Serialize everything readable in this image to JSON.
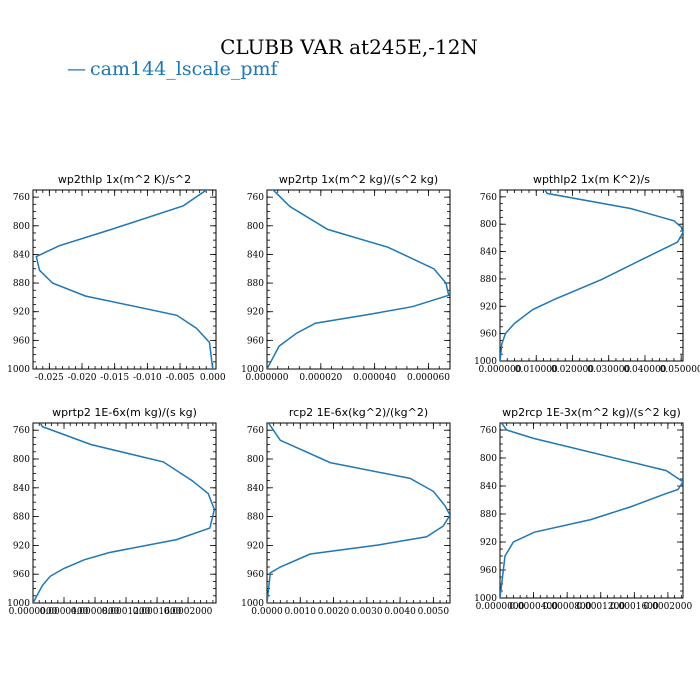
{
  "title": "CLUBB VAR at245E,-12N",
  "legend": {
    "line": "—",
    "label": "cam144_lscale_pmf",
    "color": "#1f77b4"
  },
  "chart_data": [
    {
      "type": "line",
      "title": "wp2thlp  1x(m^2 K)/s^2",
      "xlim": [
        -0.0275,
        0.0005
      ],
      "ylim": [
        1000,
        750
      ],
      "xticks": [
        -0.025,
        -0.02,
        -0.015,
        -0.01,
        -0.005,
        0.0
      ],
      "xtick_labels": [
        "-0.025",
        "-0.020",
        "-0.015",
        "-0.010",
        "-0.005",
        "0.000"
      ],
      "yticks": [
        760,
        800,
        840,
        880,
        920,
        960,
        1000
      ],
      "series": [
        {
          "x": [
            -0.0005,
            -0.0045,
            -0.0155,
            -0.0235,
            -0.027,
            -0.0265,
            -0.0245,
            -0.0195,
            -0.0055,
            -0.0025,
            -0.0005,
            0.0
          ],
          "y": [
            747,
            772,
            805,
            828,
            843,
            862,
            880,
            898,
            925,
            943,
            963,
            1000
          ]
        }
      ]
    },
    {
      "type": "line",
      "title": "wp2rtp  1x(m^2 kg)/(s^2 kg)",
      "xlim": [
        0.0,
        6.8e-05
      ],
      "ylim": [
        1000,
        750
      ],
      "xticks": [
        0.0,
        2e-05,
        4e-05,
        6e-05
      ],
      "xtick_labels": [
        "0.000000",
        "0.000020",
        "0.000040",
        "0.000060"
      ],
      "yticks": [
        760,
        800,
        840,
        880,
        920,
        960,
        1000
      ],
      "series": [
        {
          "x": [
            1.5e-06,
            8.5e-06,
            2.25e-05,
            4.5e-05,
            6.2e-05,
            6.65e-05,
            6.75e-05,
            5.4e-05,
            3.6e-05,
            1.8e-05,
            1.1e-05,
            4.5e-06,
            0.0
          ],
          "y": [
            747,
            773,
            805,
            830,
            860,
            880,
            897,
            913,
            925,
            936,
            950,
            968,
            1000
          ]
        }
      ]
    },
    {
      "type": "line",
      "title": "wpthlp2  1x(m K^2)/s",
      "xlim": [
        0.0,
        0.0505
      ],
      "ylim": [
        1000,
        750
      ],
      "xticks": [
        0.0,
        0.01,
        0.02,
        0.03,
        0.04,
        0.05
      ],
      "xtick_labels": [
        "0.000000",
        "0.010000",
        "0.020000",
        "0.030000",
        "0.040000",
        "0.050000"
      ],
      "yticks": [
        760,
        800,
        840,
        880,
        920,
        960,
        1000
      ],
      "series": [
        {
          "x": [
            0.012,
            0.013,
            0.036,
            0.048,
            0.05,
            0.0505,
            0.049,
            0.039,
            0.028,
            0.015,
            0.009,
            0.004,
            0.0015,
            0.0005,
            0.0
          ],
          "y": [
            747,
            755,
            777,
            795,
            804,
            812,
            826,
            852,
            881,
            910,
            925,
            945,
            960,
            975,
            1000
          ]
        }
      ]
    },
    {
      "type": "line",
      "title": "wprtp2  1E-6x(m kg)/(s kg)",
      "xlim": [
        0.0,
        0.000236
      ],
      "ylim": [
        1000,
        750
      ],
      "xticks": [
        0.0,
        4e-05,
        8e-05,
        0.00012,
        0.00016,
        0.0002
      ],
      "xtick_labels": [
        "0.0000000",
        "0.0000400",
        "0.0000800",
        "0.0001200",
        "0.0001600",
        "0.0002000"
      ],
      "yticks": [
        760,
        800,
        840,
        880,
        920,
        960,
        1000
      ],
      "series": [
        {
          "x": [
            8e-06,
            1.2e-05,
            7.5e-05,
            0.000168,
            0.000205,
            0.000226,
            0.000234,
            0.000228,
            0.000185,
            9.8e-05,
            6.6e-05,
            4e-05,
            2.2e-05,
            1.2e-05,
            0.0
          ],
          "y": [
            747,
            755,
            780,
            804,
            830,
            848,
            870,
            896,
            912,
            930,
            940,
            952,
            963,
            976,
            1000
          ]
        }
      ]
    },
    {
      "type": "line",
      "title": "rcp2  1E-6x(kg^2)/(kg^2)",
      "xlim": [
        0.0,
        0.0055
      ],
      "ylim": [
        1000,
        750
      ],
      "xticks": [
        0.0,
        0.001,
        0.002,
        0.003,
        0.004,
        0.005
      ],
      "xtick_labels": [
        "0.0000",
        "0.0010",
        "0.0020",
        "0.0030",
        "0.0040",
        "0.0050"
      ],
      "yticks": [
        760,
        800,
        840,
        880,
        920,
        960,
        1000
      ],
      "series": [
        {
          "x": [
            0.0,
            0.0004,
            0.0019,
            0.0043,
            0.005,
            0.00535,
            0.0055,
            0.0053,
            0.0048,
            0.0034,
            0.0013,
            0.0004,
            0.0001,
            0.0
          ],
          "y": [
            747,
            774,
            805,
            827,
            845,
            865,
            878,
            893,
            908,
            919,
            932,
            950,
            958,
            1000
          ]
        }
      ]
    },
    {
      "type": "line",
      "title": "wp2rcp  1E-3x(m^2 kg)/(s^2 kg)",
      "xlim": [
        0.0,
        0.000218
      ],
      "ylim": [
        1000,
        750
      ],
      "xticks": [
        0.0,
        4e-05,
        8e-05,
        0.00012,
        0.00016,
        0.0002
      ],
      "xtick_labels": [
        "0.0000000",
        "0.0000400",
        "0.0000800",
        "0.0001200",
        "0.0001600",
        "0.0002000"
      ],
      "yticks": [
        760,
        800,
        840,
        880,
        920,
        960,
        1000
      ],
      "series": [
        {
          "x": [
            0.0,
            8e-06,
            4e-05,
            0.000198,
            0.000218,
            0.000212,
            0.000195,
            0.000155,
            0.000108,
            4.1e-05,
            1.6e-05,
            6e-06,
            0.0
          ],
          "y": [
            747,
            760,
            772,
            818,
            834,
            845,
            852,
            870,
            888,
            906,
            920,
            940,
            1000
          ]
        }
      ]
    }
  ]
}
